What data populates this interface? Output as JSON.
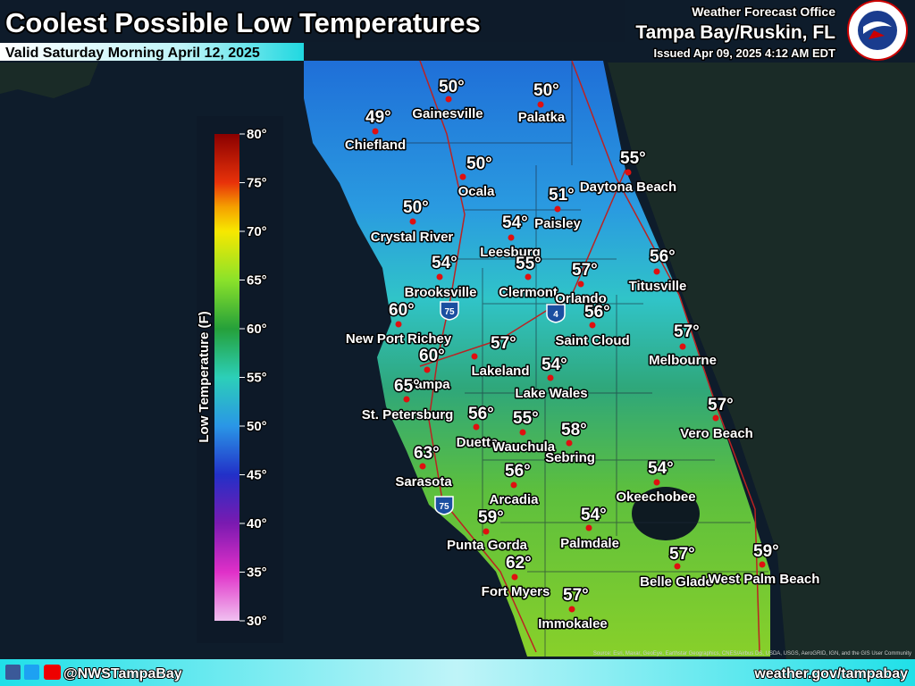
{
  "header": {
    "title": "Coolest Possible Low Temperatures",
    "subtitle": "Valid Saturday Morning April 12, 2025",
    "office": "Weather Forecast Office",
    "location": "Tampa Bay/Ruskin, FL",
    "issued": "Issued Apr 09, 2025 4:12 AM EDT"
  },
  "legend": {
    "label": "Low Temperature (F)",
    "ticks": [
      "80°",
      "75°",
      "70°",
      "65°",
      "60°",
      "55°",
      "50°",
      "45°",
      "40°",
      "35°",
      "30°"
    ]
  },
  "roads": [
    "75",
    "4",
    "75"
  ],
  "cities": [
    {
      "name": "Gainesville",
      "temp": "50°"
    },
    {
      "name": "Palatka",
      "temp": "50°"
    },
    {
      "name": "Chiefland",
      "temp": "49°"
    },
    {
      "name": "Daytona Beach",
      "temp": "55°"
    },
    {
      "name": "Ocala",
      "temp": "50°"
    },
    {
      "name": "Paisley",
      "temp": "51°"
    },
    {
      "name": "Crystal River",
      "temp": "50°"
    },
    {
      "name": "Leesburg",
      "temp": "54°"
    },
    {
      "name": "Clermont",
      "temp": "55°"
    },
    {
      "name": "Orlando",
      "temp": "57°"
    },
    {
      "name": "Titusville",
      "temp": "56°"
    },
    {
      "name": "Brooksville",
      "temp": "54°"
    },
    {
      "name": "New Port Richey",
      "temp": "60°"
    },
    {
      "name": "Saint Cloud",
      "temp": "56°"
    },
    {
      "name": "Melbourne",
      "temp": "57°"
    },
    {
      "name": "Lakeland",
      "temp": "57°"
    },
    {
      "name": "Tampa",
      "temp": "60°"
    },
    {
      "name": "Lake Wales",
      "temp": "54°"
    },
    {
      "name": "St. Petersburg",
      "temp": "65°"
    },
    {
      "name": "Vero Beach",
      "temp": "57°"
    },
    {
      "name": "Duette",
      "temp": "56°"
    },
    {
      "name": "Wauchula",
      "temp": "55°"
    },
    {
      "name": "Sebring",
      "temp": "58°"
    },
    {
      "name": "Sarasota",
      "temp": "63°"
    },
    {
      "name": "Okeechobee",
      "temp": "54°"
    },
    {
      "name": "Arcadia",
      "temp": "56°"
    },
    {
      "name": "Punta Gorda",
      "temp": "59°"
    },
    {
      "name": "Palmdale",
      "temp": "54°"
    },
    {
      "name": "Belle Glade",
      "temp": "57°"
    },
    {
      "name": "West Palm Beach",
      "temp": "59°"
    },
    {
      "name": "Fort Myers",
      "temp": "62°"
    },
    {
      "name": "Immokalee",
      "temp": "57°"
    }
  ],
  "footer": {
    "handle": "@NWSTampaBay",
    "url": "weather.gov/tampabay",
    "attribution": "Source: Esri, Maxar, GeoEye, Earthstar Geographics, CNES/Airbus DS, USDA, USGS, AeroGRID, IGN, and the GIS User Community"
  }
}
